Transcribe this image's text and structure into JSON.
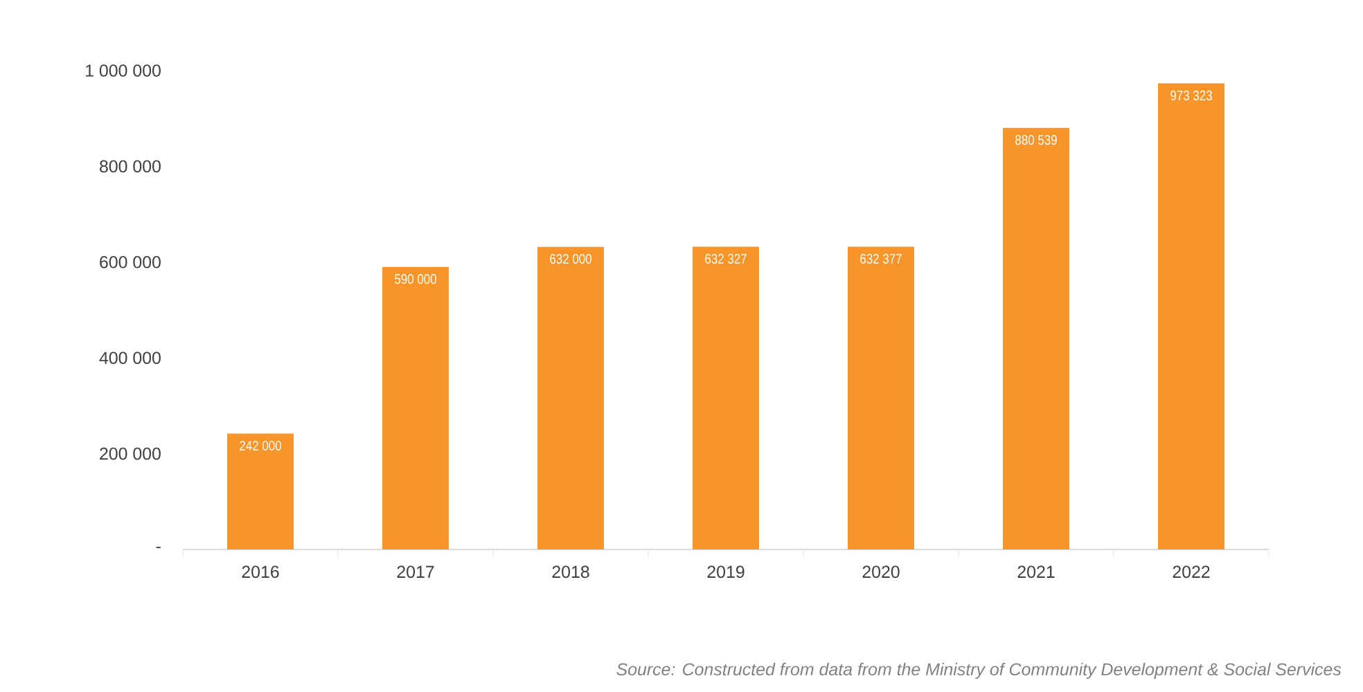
{
  "chart_data": {
    "type": "bar",
    "categories": [
      "2016",
      "2017",
      "2018",
      "2019",
      "2020",
      "2021",
      "2022"
    ],
    "values": [
      242000,
      590000,
      632000,
      632327,
      632377,
      880539,
      973323
    ],
    "value_labels": [
      "242 000",
      "590 000",
      "632 000",
      "632 327",
      "632 377",
      "880 539",
      "973 323"
    ],
    "color": "#f7952b",
    "ylim": [
      0,
      1000000
    ],
    "yticks": [
      {
        "value": 0,
        "label": "-"
      },
      {
        "value": 200000,
        "label": "200 000"
      },
      {
        "value": 400000,
        "label": "400 000"
      },
      {
        "value": 600000,
        "label": "600 000"
      },
      {
        "value": 800000,
        "label": "800 000"
      },
      {
        "value": 1000000,
        "label": "1 000 000"
      }
    ],
    "grid": false,
    "annotations": [
      "Source: Constructed from data from the Ministry of Community Development & Social Services"
    ]
  }
}
